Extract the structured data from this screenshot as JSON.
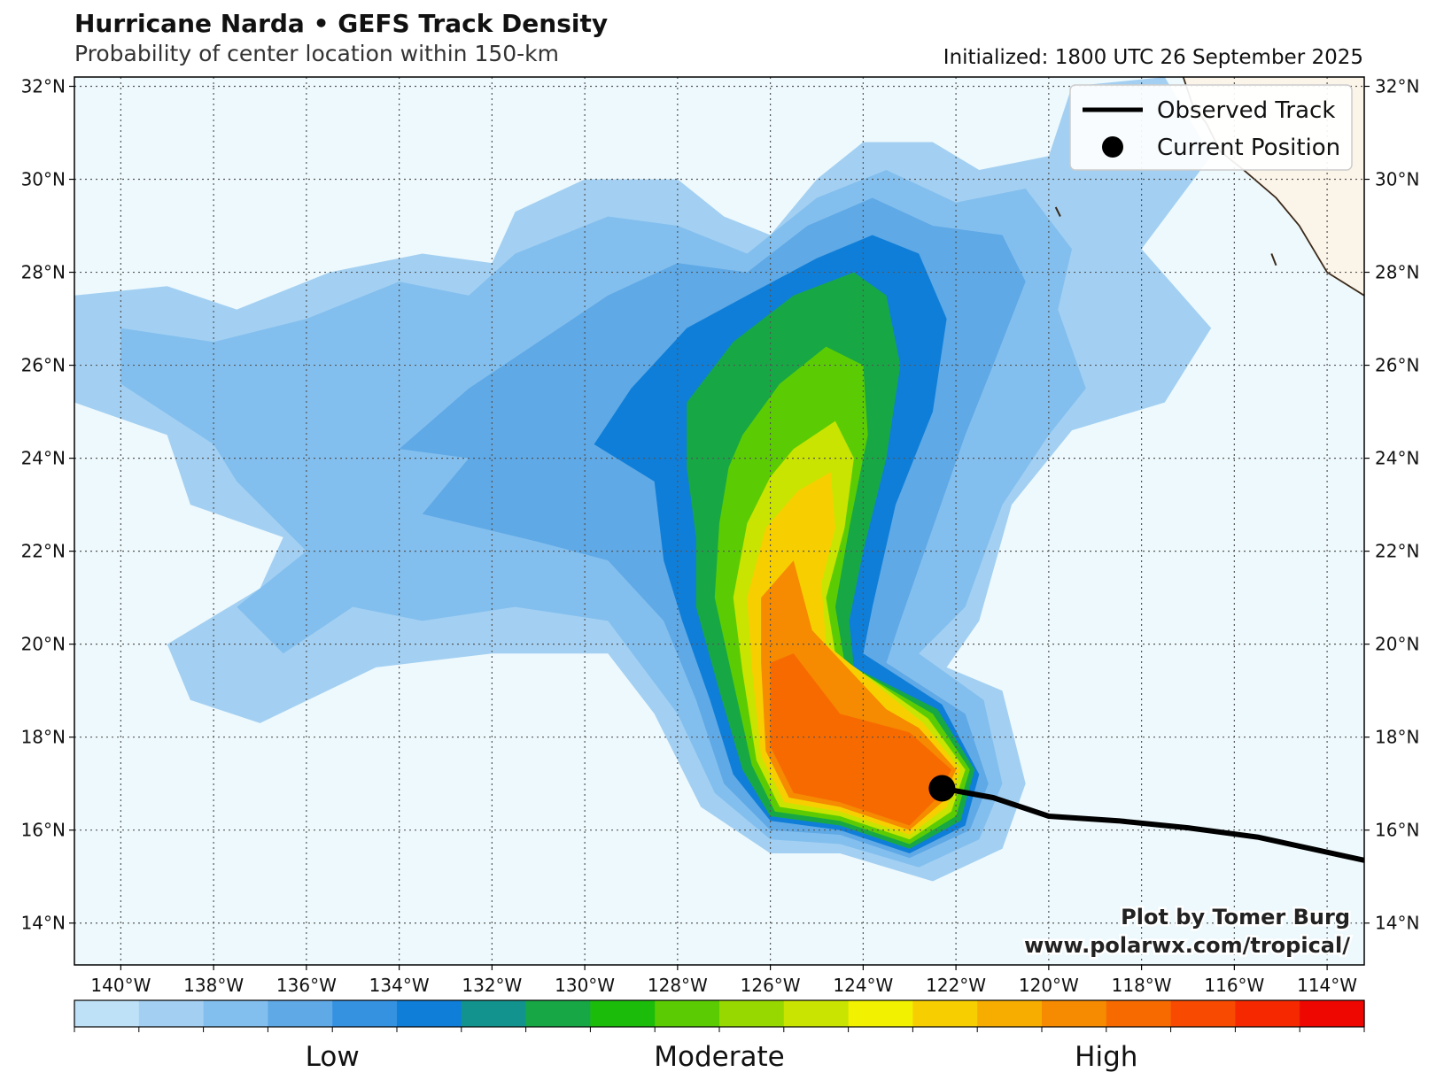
{
  "header": {
    "title": "Hurricane Narda • GEFS Track Density",
    "subtitle": "Probability of center location within 150-km",
    "initialized": "Initialized: 1800 UTC 26 September 2025"
  },
  "map": {
    "lon_range": [
      -141,
      -113.2
    ],
    "lat_range": [
      13.1,
      32.2
    ],
    "lon_ticks": [
      {
        "v": -140,
        "label": "140°W"
      },
      {
        "v": -138,
        "label": "138°W"
      },
      {
        "v": -136,
        "label": "136°W"
      },
      {
        "v": -134,
        "label": "134°W"
      },
      {
        "v": -132,
        "label": "132°W"
      },
      {
        "v": -130,
        "label": "130°W"
      },
      {
        "v": -128,
        "label": "128°W"
      },
      {
        "v": -126,
        "label": "126°W"
      },
      {
        "v": -124,
        "label": "124°W"
      },
      {
        "v": -122,
        "label": "122°W"
      },
      {
        "v": -120,
        "label": "120°W"
      },
      {
        "v": -118,
        "label": "118°W"
      },
      {
        "v": -116,
        "label": "116°W"
      },
      {
        "v": -114,
        "label": "114°W"
      }
    ],
    "lat_ticks": [
      {
        "v": 14,
        "label": "14°N"
      },
      {
        "v": 16,
        "label": "16°N"
      },
      {
        "v": 18,
        "label": "18°N"
      },
      {
        "v": 20,
        "label": "20°N"
      },
      {
        "v": 22,
        "label": "22°N"
      },
      {
        "v": 24,
        "label": "24°N"
      },
      {
        "v": 26,
        "label": "26°N"
      },
      {
        "v": 28,
        "label": "28°N"
      },
      {
        "v": 30,
        "label": "30°N"
      },
      {
        "v": 32,
        "label": "32°N"
      }
    ],
    "ocean_color": "#eef9fd",
    "land_color": "#fbf4e8",
    "grid": true,
    "observed_track": [
      [
        -113.2,
        15.35
      ],
      [
        -115.5,
        15.85
      ],
      [
        -117,
        16.05
      ],
      [
        -118.5,
        16.2
      ],
      [
        -120,
        16.3
      ],
      [
        -121.2,
        16.7
      ],
      [
        -122.3,
        16.9
      ]
    ],
    "current_position": [
      -122.3,
      16.9
    ],
    "density_contours": [
      {
        "level": 1,
        "points": [
          [
            -141,
            27.5
          ],
          [
            -139,
            27.7
          ],
          [
            -137.5,
            27.2
          ],
          [
            -135.5,
            28.0
          ],
          [
            -133.5,
            28.4
          ],
          [
            -132,
            28.2
          ],
          [
            -131.5,
            29.3
          ],
          [
            -130,
            30.0
          ],
          [
            -128,
            30.0
          ],
          [
            -127,
            29.2
          ],
          [
            -126,
            28.8
          ],
          [
            -125,
            30.0
          ],
          [
            -124,
            30.8
          ],
          [
            -122.5,
            30.8
          ],
          [
            -121.5,
            30.2
          ],
          [
            -120,
            30.5
          ],
          [
            -119.5,
            32.0
          ],
          [
            -117.5,
            32.2
          ],
          [
            -116.5,
            30.5
          ],
          [
            -118,
            28.5
          ],
          [
            -116.5,
            26.8
          ],
          [
            -117.5,
            25.2
          ],
          [
            -119.5,
            24.6
          ],
          [
            -120.8,
            23.0
          ],
          [
            -121.5,
            20.5
          ],
          [
            -122.2,
            19.5
          ],
          [
            -121,
            19.0
          ],
          [
            -120.5,
            17.0
          ],
          [
            -121,
            15.6
          ],
          [
            -122.5,
            14.9
          ],
          [
            -124.5,
            15.5
          ],
          [
            -126,
            15.5
          ],
          [
            -127.5,
            16.5
          ],
          [
            -128.5,
            18.5
          ],
          [
            -129.5,
            19.8
          ],
          [
            -132,
            19.8
          ],
          [
            -134.5,
            19.5
          ],
          [
            -137,
            18.3
          ],
          [
            -138.5,
            18.8
          ],
          [
            -139,
            20.0
          ],
          [
            -137,
            21.2
          ],
          [
            -136.5,
            22.3
          ],
          [
            -138.5,
            23.0
          ],
          [
            -139,
            24.5
          ],
          [
            -141,
            25.2
          ]
        ]
      },
      {
        "level": 2,
        "points": [
          [
            -140,
            26.8
          ],
          [
            -138,
            26.5
          ],
          [
            -136,
            27.0
          ],
          [
            -134,
            27.8
          ],
          [
            -132.5,
            27.5
          ],
          [
            -131.5,
            28.4
          ],
          [
            -129.5,
            29.2
          ],
          [
            -128,
            29.0
          ],
          [
            -126.5,
            28.4
          ],
          [
            -125,
            29.6
          ],
          [
            -123.5,
            30.2
          ],
          [
            -122,
            29.5
          ],
          [
            -120.5,
            29.8
          ],
          [
            -119.5,
            28.5
          ],
          [
            -119.8,
            27.2
          ],
          [
            -119.2,
            25.5
          ],
          [
            -120,
            24.5
          ],
          [
            -121,
            23.0
          ],
          [
            -121.8,
            20.8
          ],
          [
            -122.8,
            19.8
          ],
          [
            -121.4,
            18.8
          ],
          [
            -121,
            17.0
          ],
          [
            -121.5,
            15.8
          ],
          [
            -122.8,
            15.2
          ],
          [
            -124.5,
            15.7
          ],
          [
            -126,
            15.8
          ],
          [
            -127.2,
            16.8
          ],
          [
            -128,
            18.5
          ],
          [
            -129.5,
            20.5
          ],
          [
            -131.5,
            20.8
          ],
          [
            -133.5,
            20.5
          ],
          [
            -135,
            20.8
          ],
          [
            -136.5,
            19.8
          ],
          [
            -137.5,
            20.8
          ],
          [
            -136,
            22.0
          ],
          [
            -137.5,
            23.5
          ],
          [
            -138,
            24.3
          ],
          [
            -140,
            25.6
          ]
        ]
      },
      {
        "level": 3,
        "points": [
          [
            -132.5,
            25.5
          ],
          [
            -131,
            26.5
          ],
          [
            -129.5,
            27.5
          ],
          [
            -128,
            28.2
          ],
          [
            -126.5,
            28.0
          ],
          [
            -125.2,
            29.0
          ],
          [
            -123.8,
            29.6
          ],
          [
            -122.5,
            29.0
          ],
          [
            -121,
            28.8
          ],
          [
            -120.5,
            27.8
          ],
          [
            -121.2,
            26.0
          ],
          [
            -121.8,
            24.5
          ],
          [
            -122.5,
            22.5
          ],
          [
            -123.2,
            20.5
          ],
          [
            -123.5,
            19.6
          ],
          [
            -121.8,
            18.5
          ],
          [
            -121.3,
            17.0
          ],
          [
            -121.7,
            16.0
          ],
          [
            -123,
            15.4
          ],
          [
            -124.5,
            15.9
          ],
          [
            -126,
            16.0
          ],
          [
            -127,
            17.0
          ],
          [
            -127.6,
            18.8
          ],
          [
            -128.3,
            20.5
          ],
          [
            -129.5,
            21.8
          ],
          [
            -131,
            22.2
          ],
          [
            -133.5,
            22.8
          ],
          [
            -132.5,
            24.0
          ],
          [
            -134,
            24.2
          ]
        ]
      },
      {
        "level": 5,
        "points": [
          [
            -129,
            25.5
          ],
          [
            -127.8,
            26.8
          ],
          [
            -126.5,
            27.5
          ],
          [
            -125,
            28.3
          ],
          [
            -123.8,
            28.8
          ],
          [
            -122.8,
            28.4
          ],
          [
            -122.2,
            27.0
          ],
          [
            -122.5,
            25.0
          ],
          [
            -123.3,
            23.0
          ],
          [
            -123.8,
            20.8
          ],
          [
            -124,
            19.8
          ],
          [
            -122.3,
            18.7
          ],
          [
            -121.5,
            17.2
          ],
          [
            -121.8,
            16.1
          ],
          [
            -123,
            15.5
          ],
          [
            -124.5,
            16.0
          ],
          [
            -126,
            16.2
          ],
          [
            -126.8,
            17.2
          ],
          [
            -127.3,
            18.8
          ],
          [
            -127.9,
            20.5
          ],
          [
            -128.3,
            21.8
          ],
          [
            -128.5,
            23.5
          ],
          [
            -129.8,
            24.3
          ]
        ]
      },
      {
        "level": 7,
        "points": [
          [
            -127.8,
            25.2
          ],
          [
            -126.8,
            26.5
          ],
          [
            -125.5,
            27.5
          ],
          [
            -124.2,
            28.0
          ],
          [
            -123.5,
            27.5
          ],
          [
            -123.2,
            26.0
          ],
          [
            -123.5,
            24.0
          ],
          [
            -124,
            22.0
          ],
          [
            -124.3,
            20.5
          ],
          [
            -124.2,
            19.5
          ],
          [
            -122.4,
            18.6
          ],
          [
            -121.6,
            17.3
          ],
          [
            -121.9,
            16.2
          ],
          [
            -123,
            15.6
          ],
          [
            -124.5,
            16.1
          ],
          [
            -126,
            16.3
          ],
          [
            -126.6,
            17.3
          ],
          [
            -127.1,
            19.0
          ],
          [
            -127.6,
            20.8
          ],
          [
            -127.6,
            22.3
          ],
          [
            -127.8,
            23.8
          ]
        ]
      },
      {
        "level": 9,
        "points": [
          [
            -126.6,
            24.5
          ],
          [
            -125.8,
            25.6
          ],
          [
            -124.8,
            26.4
          ],
          [
            -124,
            26.0
          ],
          [
            -123.9,
            24.5
          ],
          [
            -124.3,
            22.5
          ],
          [
            -124.6,
            20.8
          ],
          [
            -124.4,
            19.6
          ],
          [
            -122.5,
            18.5
          ],
          [
            -121.7,
            17.3
          ],
          [
            -122,
            16.3
          ],
          [
            -123,
            15.7
          ],
          [
            -124.5,
            16.2
          ],
          [
            -125.9,
            16.4
          ],
          [
            -126.4,
            17.4
          ],
          [
            -126.8,
            19.2
          ],
          [
            -127.2,
            21.0
          ],
          [
            -127.1,
            22.6
          ],
          [
            -126.9,
            23.8
          ]
        ]
      },
      {
        "level": 11,
        "points": [
          [
            -125.5,
            24.2
          ],
          [
            -124.6,
            24.8
          ],
          [
            -124.2,
            24.0
          ],
          [
            -124.4,
            22.5
          ],
          [
            -124.8,
            21.0
          ],
          [
            -124.6,
            19.8
          ],
          [
            -122.6,
            18.4
          ],
          [
            -121.8,
            17.3
          ],
          [
            -122.1,
            16.4
          ],
          [
            -123,
            15.8
          ],
          [
            -124.5,
            16.3
          ],
          [
            -125.8,
            16.5
          ],
          [
            -126.3,
            17.5
          ],
          [
            -126.6,
            19.4
          ],
          [
            -126.8,
            21.0
          ],
          [
            -126.5,
            22.6
          ],
          [
            -126,
            23.6
          ]
        ]
      },
      {
        "level": 13,
        "points": [
          [
            -125.4,
            23.3
          ],
          [
            -124.7,
            23.7
          ],
          [
            -124.6,
            22.5
          ],
          [
            -124.9,
            21.3
          ],
          [
            -124.8,
            20.0
          ],
          [
            -122.7,
            18.3
          ],
          [
            -121.9,
            17.3
          ],
          [
            -122.2,
            16.5
          ],
          [
            -123,
            15.9
          ],
          [
            -124.5,
            16.4
          ],
          [
            -125.7,
            16.6
          ],
          [
            -126.2,
            17.6
          ],
          [
            -126.4,
            19.5
          ],
          [
            -126.5,
            21.0
          ],
          [
            -126.1,
            22.5
          ]
        ]
      },
      {
        "level": 15,
        "points": [
          [
            -125.5,
            21.8
          ],
          [
            -125.1,
            20.3
          ],
          [
            -123.5,
            18.6
          ],
          [
            -122.8,
            18.2
          ],
          [
            -122,
            17.3
          ],
          [
            -122.3,
            16.6
          ],
          [
            -123,
            16.0
          ],
          [
            -124.5,
            16.5
          ],
          [
            -125.6,
            16.7
          ],
          [
            -126.1,
            17.7
          ],
          [
            -126.2,
            19.6
          ],
          [
            -126.2,
            21.0
          ]
        ]
      },
      {
        "level": 16,
        "points": [
          [
            -125.5,
            19.8
          ],
          [
            -124.5,
            18.5
          ],
          [
            -123,
            18.1
          ],
          [
            -122.1,
            17.3
          ],
          [
            -122.4,
            16.7
          ],
          [
            -123,
            16.1
          ],
          [
            -124.5,
            16.6
          ],
          [
            -125.5,
            16.8
          ],
          [
            -126,
            17.8
          ],
          [
            -126.0,
            19.6
          ]
        ]
      }
    ],
    "baja_coast": [
      [
        -117.1,
        32.2
      ],
      [
        -116.9,
        31.6
      ],
      [
        -116.6,
        31.2
      ],
      [
        -116.3,
        30.6
      ],
      [
        -115.8,
        30.2
      ],
      [
        -115.1,
        29.6
      ],
      [
        -114.6,
        29.0
      ],
      [
        -114.3,
        28.5
      ],
      [
        -114.0,
        28.0
      ],
      [
        -113.2,
        27.5
      ]
    ]
  },
  "legend": {
    "observed_track_label": "Observed Track",
    "current_position_label": "Current Position"
  },
  "credit": {
    "line1": "Plot by Tomer Burg",
    "line2": "www.polarwx.com/tropical/"
  },
  "colorbar": {
    "colors": [
      "#bfe1f7",
      "#a3d0f2",
      "#83bfee",
      "#5fa9e6",
      "#3592e0",
      "#0f7ed8",
      "#13938e",
      "#17a845",
      "#1cbd0a",
      "#5bcc04",
      "#98d801",
      "#c9e400",
      "#f1f100",
      "#f7cf00",
      "#f6ad00",
      "#f68a00",
      "#f76a00",
      "#f84a00",
      "#f52800",
      "#ee0600"
    ],
    "labels": [
      "Low",
      "Moderate",
      "High"
    ],
    "label_fractions": [
      0.2,
      0.5,
      0.8
    ]
  }
}
